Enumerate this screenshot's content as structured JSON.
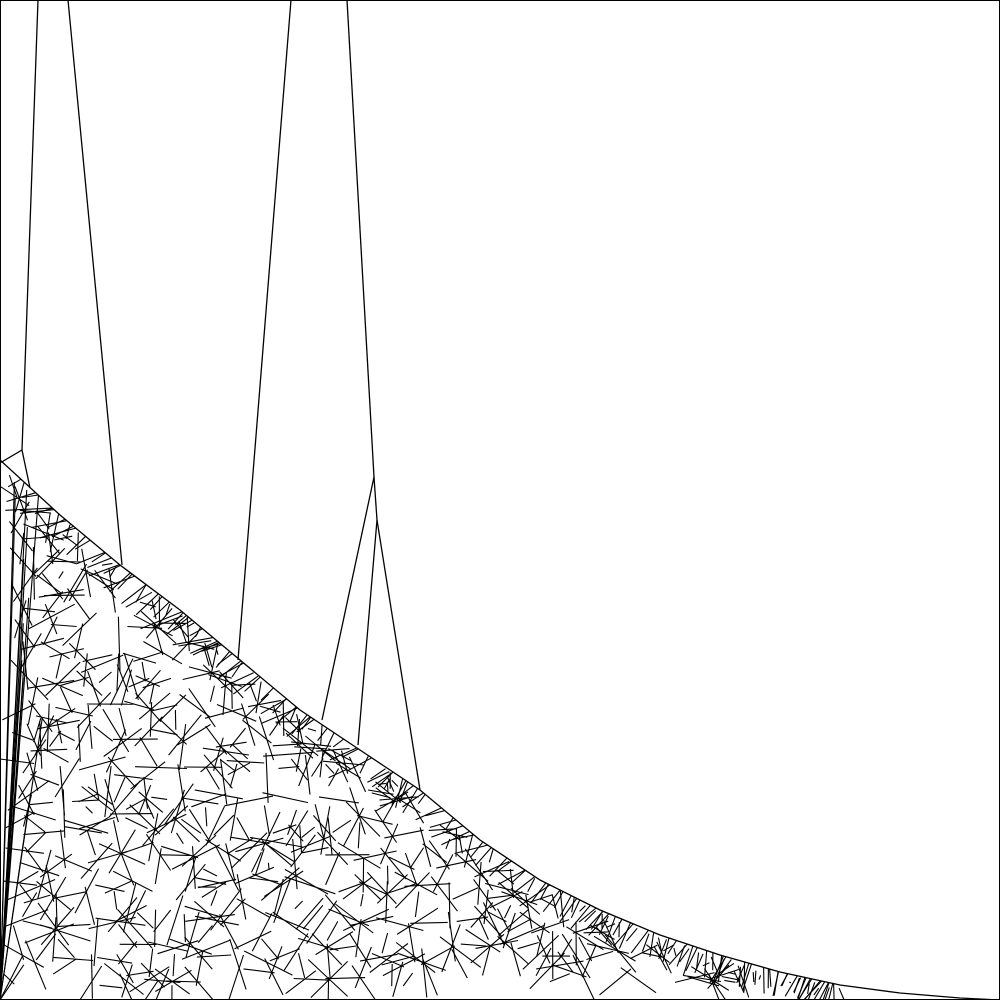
{
  "figure": {
    "kind": "voronoi-mesh",
    "background": "#ffffff",
    "stroke_color": "#000000",
    "frame": true,
    "text_labels": []
  }
}
